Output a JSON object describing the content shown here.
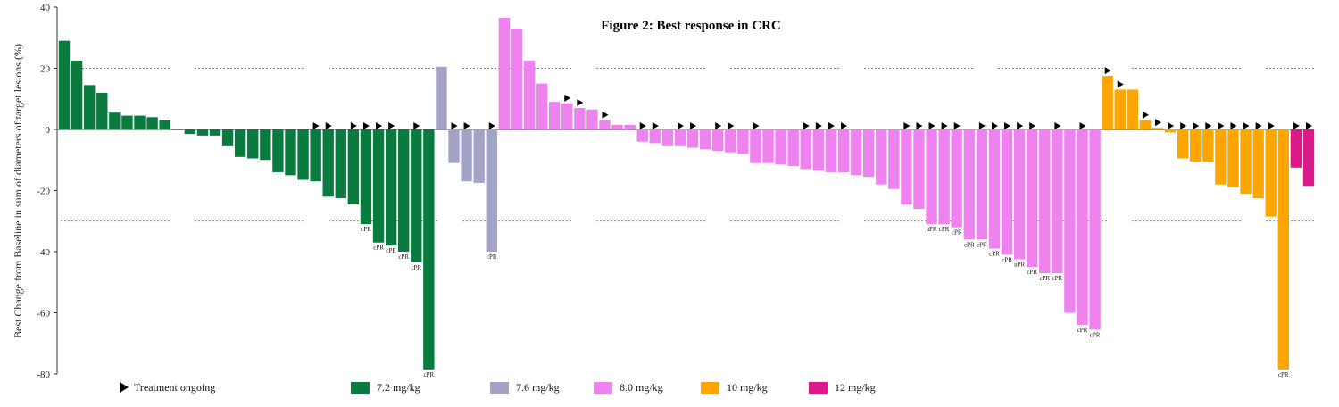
{
  "chart_data": {
    "type": "bar",
    "title": "Figure 2: Best response in CRC",
    "ylabel": "Best Change from Baseline in sum of diameters of target lesions (%)",
    "ylim": [
      -80,
      40
    ],
    "yticks": [
      40,
      20,
      0,
      -20,
      -40,
      -60,
      -80
    ],
    "reference_lines": [
      20,
      -30
    ],
    "legend": {
      "ongoing_label": "Treatment  ongoing",
      "entries": [
        {
          "label": "7.2 mg/kg",
          "color": "#0a7b3e"
        },
        {
          "label": "7.6 mg/kg",
          "color": "#a3a3c8"
        },
        {
          "label": "8.0 mg/kg",
          "color": "#ee82ee"
        },
        {
          "label": "10 mg/kg",
          "color": "#ffa500"
        },
        {
          "label": "12 mg/kg",
          "color": "#dd1a8a"
        }
      ]
    },
    "series": [
      {
        "name": "7.2 mg/kg",
        "color": "#0a7b3e",
        "values": [
          29,
          22.5,
          14.5,
          12,
          5.5,
          4.5,
          4.5,
          4,
          3,
          0,
          -1.5,
          -2,
          -2,
          -5.5,
          -9,
          -9.5,
          -10,
          -14,
          -15,
          -16.5,
          -17,
          -22,
          -22.5,
          -24.5,
          -31,
          -37,
          -38,
          -40,
          -43.5,
          -78.5
        ],
        "ongoing": [
          false,
          false,
          false,
          false,
          false,
          false,
          false,
          false,
          false,
          false,
          false,
          false,
          false,
          false,
          false,
          false,
          false,
          false,
          false,
          false,
          true,
          true,
          false,
          true,
          true,
          true,
          true,
          false,
          true,
          false
        ],
        "annotations": [
          "",
          "",
          "",
          "",
          "",
          "",
          "",
          "",
          "",
          "",
          "",
          "",
          "",
          "",
          "",
          "",
          "",
          "",
          "",
          "",
          "",
          "",
          "",
          "",
          "cPR",
          "cPR",
          "cPR",
          "cPR",
          "cPR",
          "cPR"
        ]
      },
      {
        "name": "7.6 mg/kg",
        "color": "#a3a3c8",
        "values": [
          20.5,
          -11,
          -17,
          -17.5,
          -40
        ],
        "ongoing": [
          false,
          true,
          true,
          false,
          true
        ],
        "annotations": [
          "",
          "",
          "",
          "",
          "cPR"
        ]
      },
      {
        "name": "8.0 mg/kg",
        "color": "#ee82ee",
        "values": [
          36.5,
          33,
          22.5,
          15,
          9,
          8.5,
          7,
          6.5,
          3,
          1.5,
          1.5,
          -4,
          -4.5,
          -5.5,
          -5.5,
          -6,
          -6.5,
          -7,
          -7.5,
          -8,
          -11,
          -11,
          -11.5,
          -12,
          -13,
          -13.5,
          -14,
          -14,
          -15,
          -15.5,
          -18,
          -19.5,
          -24.5,
          -26,
          -31,
          -31,
          -32,
          -36,
          -36,
          -39,
          -41,
          -42.5,
          -45,
          -47,
          -47,
          -60,
          -64,
          -65.5
        ],
        "ongoing": [
          false,
          false,
          false,
          false,
          false,
          true,
          true,
          false,
          true,
          false,
          false,
          true,
          true,
          false,
          true,
          true,
          false,
          true,
          true,
          false,
          true,
          false,
          false,
          false,
          true,
          true,
          true,
          true,
          false,
          false,
          false,
          false,
          true,
          true,
          true,
          true,
          true,
          false,
          true,
          true,
          true,
          true,
          true,
          false,
          true,
          false,
          true,
          false
        ],
        "annotations": [
          "",
          "",
          "",
          "",
          "",
          "",
          "",
          "",
          "",
          "",
          "",
          "",
          "",
          "",
          "",
          "",
          "",
          "",
          "",
          "",
          "",
          "",
          "",
          "",
          "",
          "",
          "",
          "",
          "",
          "",
          "",
          "",
          "",
          "",
          "uPR",
          "cPR",
          "cPR",
          "cPR",
          "cPR",
          "cPR",
          "cPR",
          "uPR",
          "cPR",
          "cPR",
          "cPR",
          "",
          "cPR",
          "cPR"
        ]
      },
      {
        "name": "10 mg/kg",
        "color": "#ffa500",
        "values": [
          17.5,
          13,
          13,
          3,
          0.5,
          -1,
          -9.5,
          -10.5,
          -10.5,
          -18,
          -19,
          -21,
          -22.5,
          -28.5,
          -78.5
        ],
        "ongoing": [
          true,
          true,
          false,
          true,
          true,
          true,
          true,
          true,
          true,
          true,
          true,
          true,
          true,
          true,
          false
        ],
        "annotations": [
          "",
          "",
          "",
          "",
          "",
          "",
          "",
          "",
          "",
          "",
          "",
          "",
          "",
          "",
          "cPR"
        ]
      },
      {
        "name": "12 mg/kg",
        "color": "#dd1a8a",
        "values": [
          -12.5,
          -18.5
        ],
        "ongoing": [
          true,
          true
        ],
        "annotations": [
          "",
          ""
        ]
      }
    ]
  }
}
